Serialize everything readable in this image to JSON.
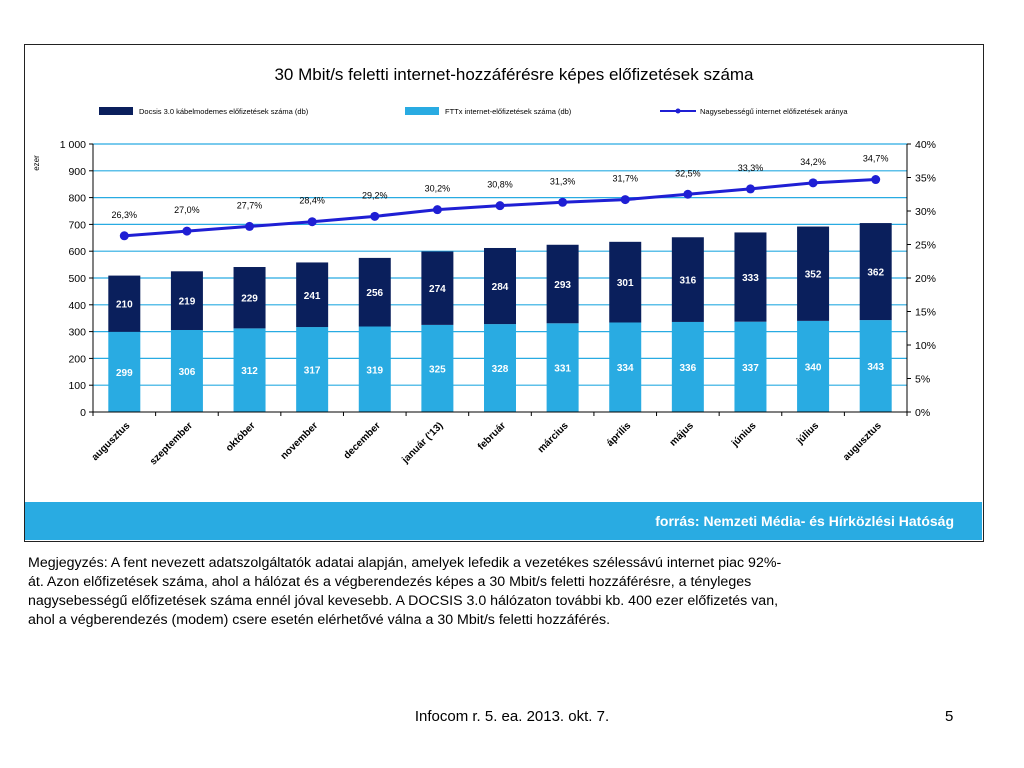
{
  "chart_data": {
    "type": "bar",
    "title": "30 Mbit/s feletti internet-hozzáférésre képes előfizetések száma",
    "y_left_unit_label": "ezer",
    "categories": [
      "augusztus",
      "szeptember",
      "október",
      "november",
      "december",
      "január ('13)",
      "február",
      "március",
      "április",
      "május",
      "június",
      "július",
      "augusztus"
    ],
    "series": [
      {
        "name": "Docsis 3.0 kábelmodemes előfizetések száma (db)",
        "color": "#0a1f5c",
        "stack_position": "top",
        "values": [
          210,
          219,
          229,
          241,
          256,
          274,
          284,
          293,
          301,
          316,
          333,
          352,
          362
        ]
      },
      {
        "name": "FTTx internet-előfizetések száma (db)",
        "color": "#29abe2",
        "stack_position": "bottom",
        "values": [
          299,
          306,
          312,
          317,
          319,
          325,
          328,
          331,
          334,
          336,
          337,
          340,
          343
        ]
      },
      {
        "name": "Nagysebességű internet előfizetések aránya",
        "type": "line",
        "axis": "right",
        "color": "#1f1fd4",
        "values": [
          26.3,
          27.0,
          27.7,
          28.4,
          29.2,
          30.2,
          30.8,
          31.3,
          31.7,
          32.5,
          33.3,
          34.2,
          34.7
        ],
        "labels": [
          "26,3%",
          "27,0%",
          "27,7%",
          "28,4%",
          "29,2%",
          "30,2%",
          "30,8%",
          "31,3%",
          "31,7%",
          "32,5%",
          "33,3%",
          "34,2%",
          "34,7%"
        ]
      }
    ],
    "y_left": {
      "min": 0,
      "max": 1000,
      "ticks": [
        0,
        100,
        200,
        300,
        400,
        500,
        600,
        700,
        800,
        900,
        1000
      ],
      "tick_labels": [
        "0",
        "100",
        "200",
        "300",
        "400",
        "500",
        "600",
        "700",
        "800",
        "900",
        "1 000"
      ]
    },
    "y_right": {
      "min": 0,
      "max": 40,
      "ticks": [
        0,
        5,
        10,
        15,
        20,
        25,
        30,
        35,
        40
      ],
      "tick_labels": [
        "0%",
        "5%",
        "10%",
        "15%",
        "20%",
        "25%",
        "30%",
        "35%",
        "40%"
      ]
    },
    "grid": true,
    "legend_position": "top"
  },
  "source": "forrás: Nemzeti Média- és Hírközlési Hatóság",
  "note_lines": [
    "Megjegyzés: A fent nevezett adatszolgáltatók adatai alapján, amelyek lefedik a vezetékes szélessávú internet piac 92%-",
    "át. Azon előfizetések száma, ahol a hálózat és a végberendezés képes a 30 Mbit/s feletti hozzáférésre, a tényleges",
    "nagysebességű előfizetések száma ennél jóval kevesebb. A DOCSIS 3.0 hálózaton további kb. 400 ezer előfizetés van,",
    "ahol a végberendezés (modem) csere esetén elérhetővé válna a 30 Mbit/s feletti hozzáférés."
  ],
  "footer": "Infocom r. 5. ea. 2013. okt. 7.",
  "page_number": "5",
  "colors": {
    "accent": "#29abe2",
    "dark_bar": "#0a1f5c",
    "line": "#1f1fd4",
    "grid": "#29abe2"
  }
}
